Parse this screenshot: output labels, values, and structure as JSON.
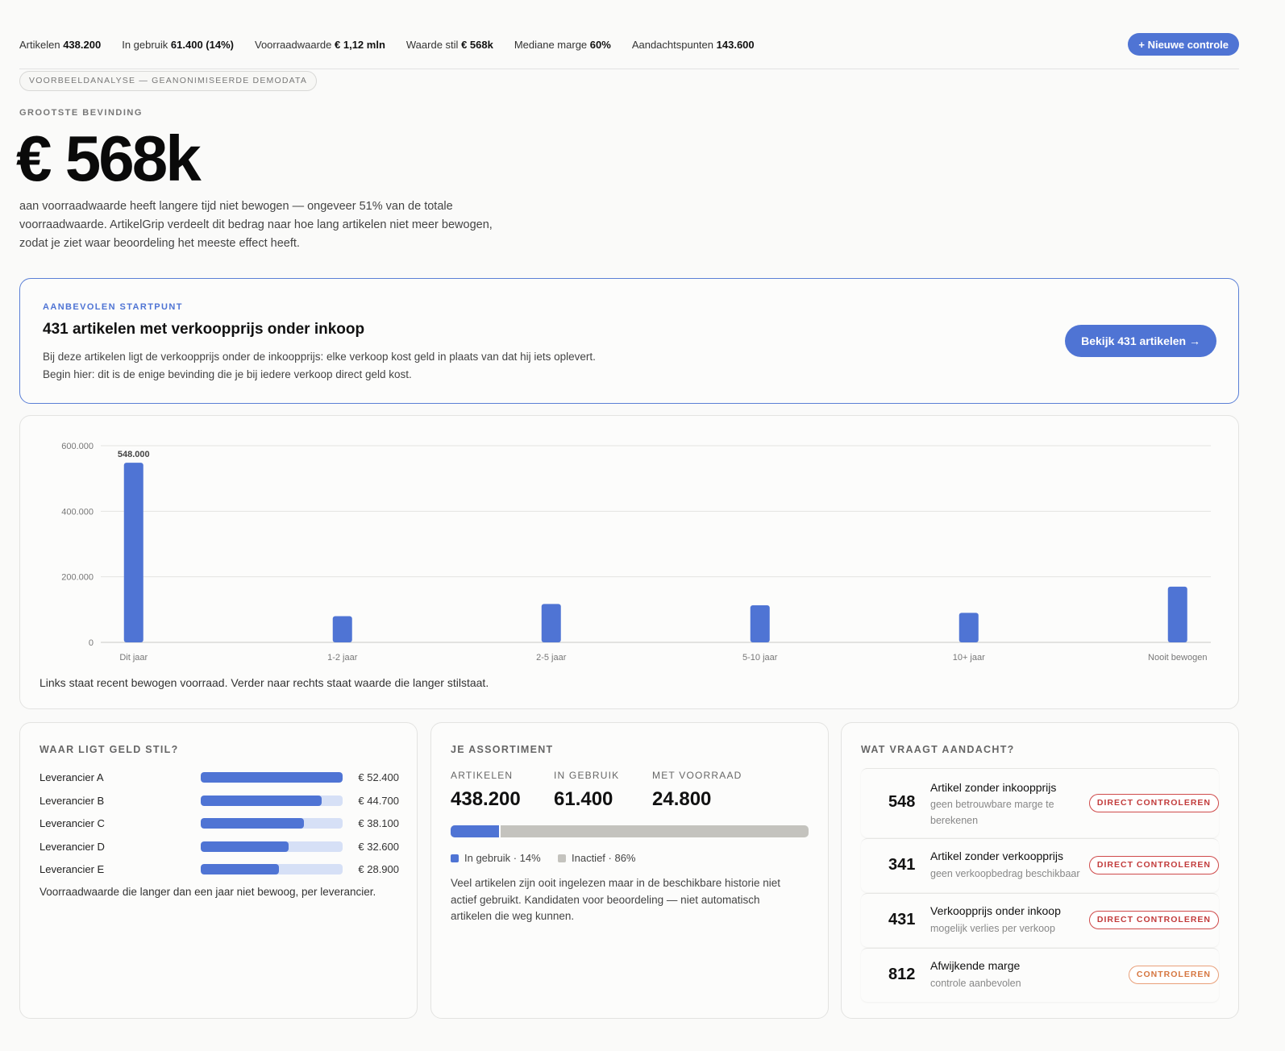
{
  "topbar": {
    "stats": [
      {
        "label": "Artikelen",
        "value": "438.200"
      },
      {
        "label": "In gebruik",
        "value": "61.400 (14%)"
      },
      {
        "label": "Voorraadwaarde",
        "value": "€ 1,12 mln"
      },
      {
        "label": "Waarde stil",
        "value": "€ 568k"
      },
      {
        "label": "Mediane marge",
        "value": "60%"
      },
      {
        "label": "Aandachtspunten",
        "value": "143.600"
      }
    ],
    "new_button": "+ Nieuwe controle"
  },
  "demo_badge": "VOORBEELDANALYSE — GEANONIMISEERDE DEMODATA",
  "finding": {
    "label": "GROOTSTE BEVINDING",
    "value": "€ 568k",
    "description": "aan voorraadwaarde heeft langere tijd niet bewogen — ongeveer 51% van de totale voorraadwaarde. ArtikelGrip verdeelt dit bedrag naar hoe lang artikelen niet meer bewogen, zodat je ziet waar beoordeling het meeste effect heeft."
  },
  "start_card": {
    "label": "AANBEVOLEN STARTPUNT",
    "title": "431 artikelen met verkoopprijs onder inkoop",
    "description": "Bij deze artikelen ligt de verkoopprijs onder de inkoopprijs: elke verkoop kost geld in plaats van dat hij iets oplevert. Begin hier: dit is de enige bevinding die je bij iedere verkoop direct geld kost.",
    "button": "Bekijk 431 artikelen →"
  },
  "chart_data": {
    "type": "bar",
    "categories": [
      "Dit jaar",
      "1-2 jaar",
      "2-5 jaar",
      "5-10 jaar",
      "10+ jaar",
      "Nooit bewogen"
    ],
    "values": [
      548000,
      80000,
      117000,
      113000,
      90000,
      170000
    ],
    "ylim": [
      0,
      600000
    ],
    "yticks": [
      "0",
      "200.000",
      "400.000",
      "600.000"
    ],
    "ytick_values": [
      0,
      200000,
      400000,
      600000
    ],
    "data_labels": [
      "548.000",
      "",
      "",
      "",
      "",
      ""
    ],
    "grid": true,
    "color": "#4f74d4",
    "caption": "Links staat recent bewogen voorraad. Verder naar rechts staat waarde die langer stilstaat."
  },
  "suppliers": {
    "title": "WAAR LIGT GELD STIL?",
    "items": [
      {
        "name": "Leverancier A",
        "value": "€ 52.400",
        "fraction": 1.0
      },
      {
        "name": "Leverancier B",
        "value": "€ 44.700",
        "fraction": 0.853
      },
      {
        "name": "Leverancier C",
        "value": "€ 38.100",
        "fraction": 0.727
      },
      {
        "name": "Leverancier D",
        "value": "€ 32.600",
        "fraction": 0.622
      },
      {
        "name": "Leverancier E",
        "value": "€ 28.900",
        "fraction": 0.552
      }
    ],
    "caption": "Voorraadwaarde die langer dan een jaar niet bewoog, per leverancier."
  },
  "assortment": {
    "title": "JE ASSORTIMENT",
    "stats": [
      {
        "label": "ARTIKELEN",
        "value": "438.200"
      },
      {
        "label": "IN GEBRUIK",
        "value": "61.400"
      },
      {
        "label": "MET VOORRAAD",
        "value": "24.800"
      }
    ],
    "in_use_fraction": 0.14,
    "legend_in_use": "In gebruik · 14%",
    "legend_inactive": "Inactief · 86%",
    "description": "Veel artikelen zijn ooit ingelezen maar in de beschikbare historie niet actief gebruikt. Kandidaten voor beoordeling — niet automatisch artikelen die weg kunnen."
  },
  "attention": {
    "title": "WAT VRAAGT AANDACHT?",
    "items": [
      {
        "count": "548",
        "title": "Artikel zonder inkoopprijs",
        "sub": "geen betrouwbare marge te berekenen",
        "badge": "DIRECT CONTROLEREN",
        "severity": "red"
      },
      {
        "count": "341",
        "title": "Artikel zonder verkoopprijs",
        "sub": "geen verkoopbedrag beschikbaar",
        "badge": "DIRECT CONTROLEREN",
        "severity": "red"
      },
      {
        "count": "431",
        "title": "Verkoopprijs onder inkoop",
        "sub": "mogelijk verlies per verkoop",
        "badge": "DIRECT CONTROLEREN",
        "severity": "red"
      },
      {
        "count": "812",
        "title": "Afwijkende marge",
        "sub": "controle aanbevolen",
        "badge": "CONTROLEREN",
        "severity": "orange"
      }
    ]
  },
  "colors": {
    "accent": "#4f74d4",
    "danger": "#c23b3b",
    "warning": "#d67640",
    "inactive": "#c4c3be"
  }
}
